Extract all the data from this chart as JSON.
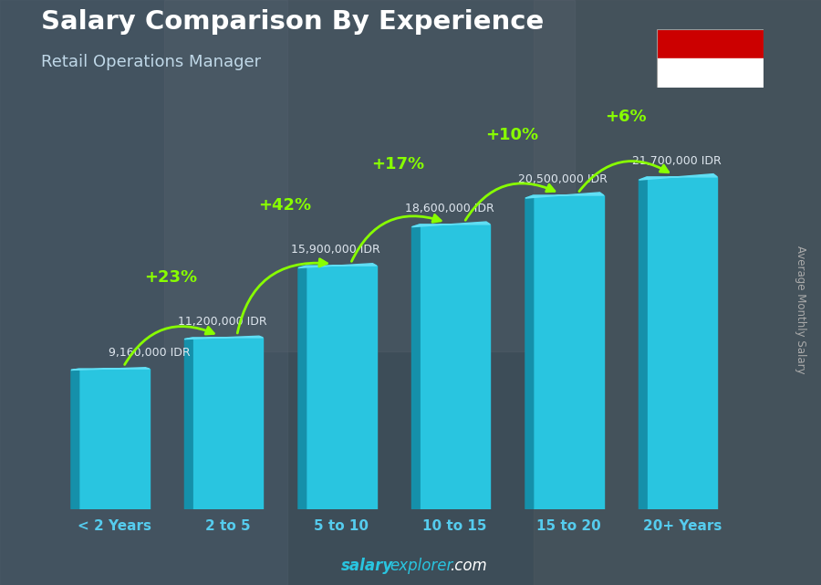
{
  "title": "Salary Comparison By Experience",
  "subtitle": "Retail Operations Manager",
  "categories": [
    "< 2 Years",
    "2 to 5",
    "5 to 10",
    "10 to 15",
    "15 to 20",
    "20+ Years"
  ],
  "values": [
    9160000,
    11200000,
    15900000,
    18600000,
    20500000,
    21700000
  ],
  "salary_labels": [
    "9,160,000 IDR",
    "11,200,000 IDR",
    "15,900,000 IDR",
    "18,600,000 IDR",
    "20,500,000 IDR",
    "21,700,000 IDR"
  ],
  "pct_changes": [
    null,
    "+23%",
    "+42%",
    "+17%",
    "+10%",
    "+6%"
  ],
  "bar_face_color": "#29c5e0",
  "bar_left_color": "#1590aa",
  "bar_top_color": "#60dff5",
  "bg_color": "#3d4d5c",
  "title_color": "#ffffff",
  "subtitle_color": "#c0d8e8",
  "label_color": "#e0e8f0",
  "pct_color": "#88ff00",
  "tick_color": "#55ccee",
  "ylabel": "Average Monthly Salary",
  "footer_bold": "salary",
  "footer_normal": "explorer",
  "footer_suffix": ".com",
  "ylim_max": 26000000,
  "flag_red": "#cc0000",
  "flag_white": "#ffffff"
}
